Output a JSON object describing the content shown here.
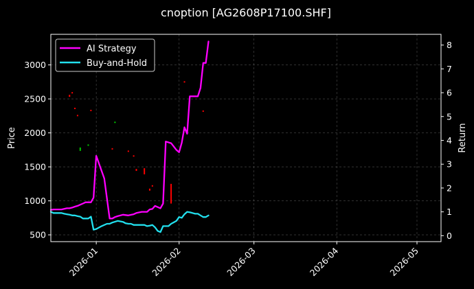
{
  "chart_data": {
    "type": "line",
    "title": "cnoption [AG2608P17100.SHF]",
    "x_axis": {
      "type": "date",
      "range": [
        "2025-12-15",
        "2026-05-10"
      ],
      "ticks": [
        "2026-01-01",
        "2026-02-01",
        "2026-03-01",
        "2026-04-01",
        "2026-05-01"
      ],
      "tick_labels": [
        "2026-01",
        "2026-02",
        "2026-03",
        "2026-04",
        "2026-05"
      ],
      "label_rotation": "45deg"
    },
    "y_left": {
      "label": "Price",
      "range": [
        400,
        3450
      ],
      "ticks": [
        500,
        1000,
        1500,
        2000,
        2500,
        3000
      ]
    },
    "y_right": {
      "label": "Return",
      "range": [
        -0.25,
        8.45
      ],
      "ticks": [
        0,
        1,
        2,
        3,
        4,
        5,
        6,
        7,
        8
      ]
    },
    "grid": true,
    "legend_position": "top-left",
    "background": "#000000",
    "series": [
      {
        "name": "AI Strategy",
        "axis": "right",
        "color": "#ff00ff",
        "points": [
          [
            "2025-12-15",
            1.08
          ],
          [
            "2025-12-16",
            1.1
          ],
          [
            "2025-12-17",
            1.1
          ],
          [
            "2025-12-18",
            1.1
          ],
          [
            "2025-12-19",
            1.1
          ],
          [
            "2025-12-21",
            1.15
          ],
          [
            "2025-12-22",
            1.15
          ],
          [
            "2025-12-23",
            1.18
          ],
          [
            "2025-12-24",
            1.22
          ],
          [
            "2025-12-25",
            1.25
          ],
          [
            "2025-12-26",
            1.3
          ],
          [
            "2025-12-27",
            1.35
          ],
          [
            "2025-12-28",
            1.4
          ],
          [
            "2025-12-30",
            1.4
          ],
          [
            "2025-12-31",
            1.6
          ],
          [
            "2026-01-01",
            3.35
          ],
          [
            "2026-01-04",
            2.4
          ],
          [
            "2026-01-06",
            0.72
          ],
          [
            "2026-01-07",
            0.72
          ],
          [
            "2026-01-08",
            0.78
          ],
          [
            "2026-01-09",
            0.82
          ],
          [
            "2026-01-11",
            0.88
          ],
          [
            "2026-01-13",
            0.85
          ],
          [
            "2026-01-15",
            0.9
          ],
          [
            "2026-01-16",
            0.95
          ],
          [
            "2026-01-18",
            1.0
          ],
          [
            "2026-01-20",
            1.0
          ],
          [
            "2026-01-21",
            1.1
          ],
          [
            "2026-01-22",
            1.12
          ],
          [
            "2026-01-23",
            1.25
          ],
          [
            "2026-01-25",
            1.15
          ],
          [
            "2026-01-26",
            1.35
          ],
          [
            "2026-01-27",
            3.95
          ],
          [
            "2026-01-29",
            3.88
          ],
          [
            "2026-01-31",
            3.6
          ],
          [
            "2026-02-01",
            3.5
          ],
          [
            "2026-02-02",
            3.9
          ],
          [
            "2026-02-03",
            4.55
          ],
          [
            "2026-02-04",
            4.28
          ],
          [
            "2026-02-05",
            5.85
          ],
          [
            "2026-02-06",
            5.85
          ],
          [
            "2026-02-08",
            5.85
          ],
          [
            "2026-02-09",
            6.2
          ],
          [
            "2026-02-10",
            7.25
          ],
          [
            "2026-02-11",
            7.25
          ],
          [
            "2026-02-12",
            8.15
          ]
        ]
      },
      {
        "name": "Buy-and-Hold",
        "axis": "right",
        "color": "#22e0ee",
        "points": [
          [
            "2025-12-15",
            1.0
          ],
          [
            "2025-12-16",
            0.95
          ],
          [
            "2025-12-17",
            0.95
          ],
          [
            "2025-12-18",
            0.95
          ],
          [
            "2025-12-19",
            0.95
          ],
          [
            "2025-12-20",
            0.92
          ],
          [
            "2025-12-21",
            0.9
          ],
          [
            "2025-12-22",
            0.88
          ],
          [
            "2025-12-23",
            0.85
          ],
          [
            "2025-12-24",
            0.85
          ],
          [
            "2025-12-25",
            0.82
          ],
          [
            "2025-12-26",
            0.8
          ],
          [
            "2025-12-27",
            0.72
          ],
          [
            "2025-12-28",
            0.72
          ],
          [
            "2025-12-29",
            0.72
          ],
          [
            "2025-12-30",
            0.8
          ],
          [
            "2025-12-31",
            0.25
          ],
          [
            "2026-01-01",
            0.28
          ],
          [
            "2026-01-03",
            0.4
          ],
          [
            "2026-01-05",
            0.5
          ],
          [
            "2026-01-06",
            0.5
          ],
          [
            "2026-01-07",
            0.55
          ],
          [
            "2026-01-09",
            0.62
          ],
          [
            "2026-01-10",
            0.6
          ],
          [
            "2026-01-11",
            0.58
          ],
          [
            "2026-01-12",
            0.52
          ],
          [
            "2026-01-13",
            0.5
          ],
          [
            "2026-01-14",
            0.5
          ],
          [
            "2026-01-15",
            0.45
          ],
          [
            "2026-01-16",
            0.45
          ],
          [
            "2026-01-17",
            0.45
          ],
          [
            "2026-01-18",
            0.45
          ],
          [
            "2026-01-19",
            0.45
          ],
          [
            "2026-01-20",
            0.4
          ],
          [
            "2026-01-21",
            0.42
          ],
          [
            "2026-01-22",
            0.45
          ],
          [
            "2026-01-23",
            0.35
          ],
          [
            "2026-01-24",
            0.2
          ],
          [
            "2026-01-25",
            0.15
          ],
          [
            "2026-01-26",
            0.4
          ],
          [
            "2026-01-27",
            0.4
          ],
          [
            "2026-01-28",
            0.4
          ],
          [
            "2026-01-29",
            0.5
          ],
          [
            "2026-01-31",
            0.62
          ],
          [
            "2026-02-01",
            0.78
          ],
          [
            "2026-02-02",
            0.75
          ],
          [
            "2026-02-03",
            0.9
          ],
          [
            "2026-02-04",
            1.0
          ],
          [
            "2026-02-05",
            0.98
          ],
          [
            "2026-02-06",
            0.95
          ],
          [
            "2026-02-07",
            0.92
          ],
          [
            "2026-02-08",
            0.92
          ],
          [
            "2026-02-09",
            0.85
          ],
          [
            "2026-02-10",
            0.78
          ],
          [
            "2026-02-11",
            0.78
          ],
          [
            "2026-02-12",
            0.85
          ]
        ]
      }
    ],
    "price_bars": {
      "axis": "left",
      "up_color": "#00c800",
      "down_color": "#ff0000",
      "bars": [
        {
          "date": "2025-12-22",
          "low": 2530,
          "high": 2560,
          "dir": "down"
        },
        {
          "date": "2025-12-23",
          "low": 2590,
          "high": 2600,
          "dir": "down"
        },
        {
          "date": "2025-12-24",
          "low": 2360,
          "high": 2370,
          "dir": "down"
        },
        {
          "date": "2025-12-25",
          "low": 2260,
          "high": 2265,
          "dir": "down"
        },
        {
          "date": "2025-12-26",
          "low": 1735,
          "high": 1785,
          "dir": "up"
        },
        {
          "date": "2025-12-29",
          "low": 1820,
          "high": 1830,
          "dir": "up"
        },
        {
          "date": "2025-12-30",
          "low": 2335,
          "high": 2340,
          "dir": "down"
        },
        {
          "date": "2026-01-07",
          "low": 1770,
          "high": 1775,
          "dir": "down"
        },
        {
          "date": "2026-01-08",
          "low": 2160,
          "high": 2165,
          "dir": "up"
        },
        {
          "date": "2026-01-13",
          "low": 1730,
          "high": 1740,
          "dir": "down"
        },
        {
          "date": "2026-01-15",
          "low": 1650,
          "high": 1670,
          "dir": "down"
        },
        {
          "date": "2026-01-16",
          "low": 1440,
          "high": 1470,
          "dir": "down"
        },
        {
          "date": "2026-01-19",
          "low": 1390,
          "high": 1480,
          "dir": "down"
        },
        {
          "date": "2026-01-21",
          "low": 1150,
          "high": 1180,
          "dir": "down"
        },
        {
          "date": "2026-01-22",
          "low": 1220,
          "high": 1230,
          "dir": "down"
        },
        {
          "date": "2026-01-29",
          "low": 960,
          "high": 1250,
          "dir": "down"
        },
        {
          "date": "2026-02-03",
          "low": 2740,
          "high": 2760,
          "dir": "down"
        },
        {
          "date": "2026-02-10",
          "low": 2320,
          "high": 2330,
          "dir": "down"
        }
      ]
    }
  }
}
